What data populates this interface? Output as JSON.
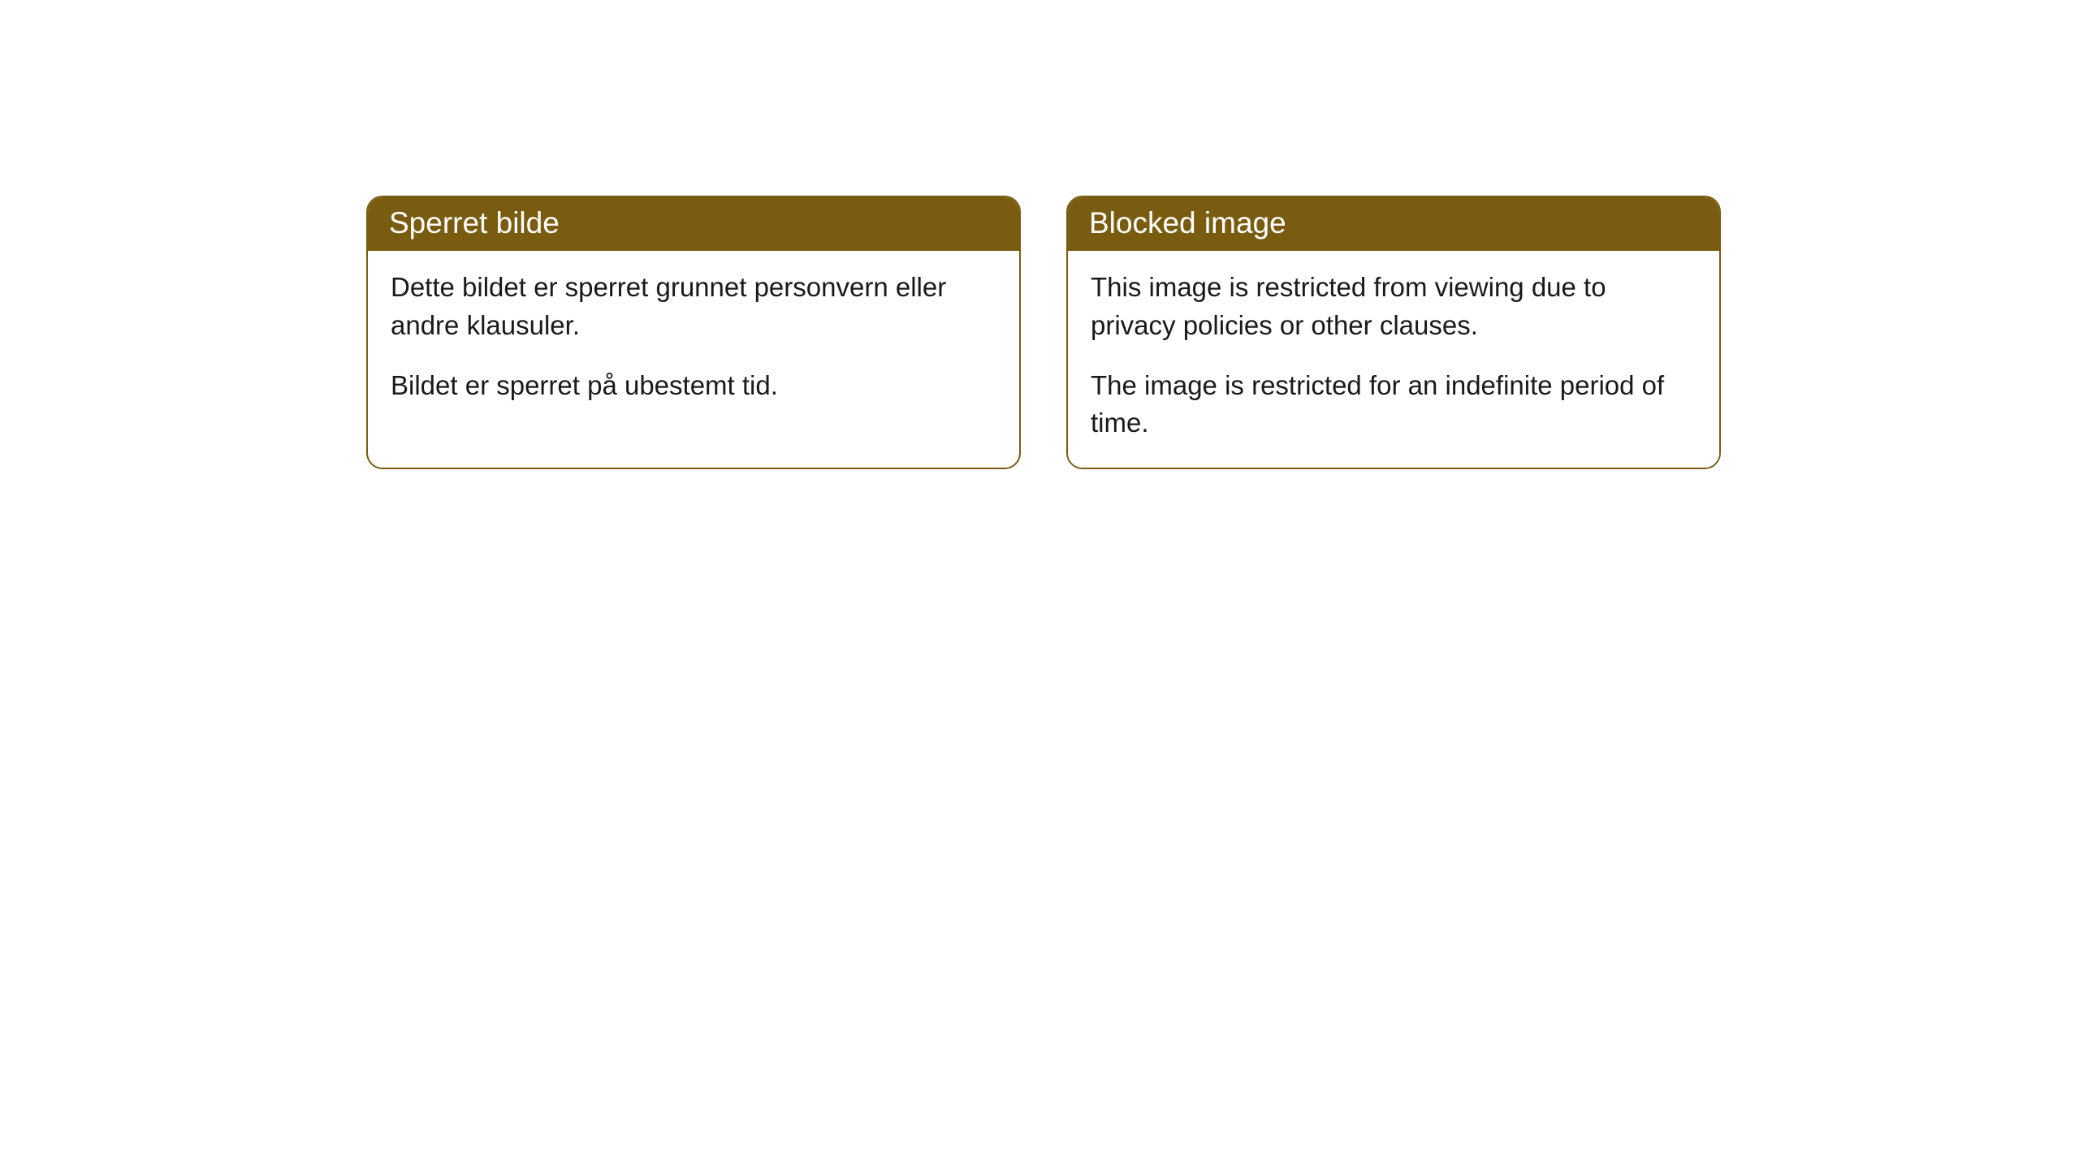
{
  "cards": [
    {
      "title": "Sperret bilde",
      "paragraph1": "Dette bildet er sperret grunnet personvern eller andre klausuler.",
      "paragraph2": "Bildet er sperret på ubestemt tid."
    },
    {
      "title": "Blocked image",
      "paragraph1": "This image is restricted from viewing due to privacy policies or other clauses.",
      "paragraph2": "The image is restricted for an indefinite period of time."
    }
  ],
  "style": {
    "header_background": "#7a5c11",
    "header_text_color": "#ffffff",
    "border_color": "#7a5c11",
    "body_background": "#ffffff",
    "body_text_color": "#1a1a1a",
    "border_radius": 20,
    "title_fontsize": 37,
    "body_fontsize": 33
  }
}
